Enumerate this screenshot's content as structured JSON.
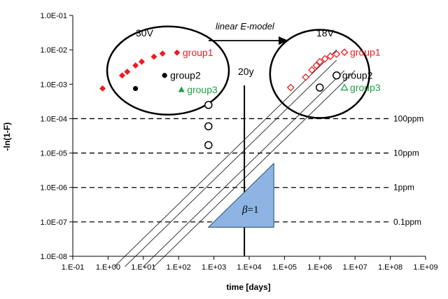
{
  "chart_data": {
    "type": "scatter",
    "xlabel": "time [days]",
    "ylabel": "-ln(1-F)",
    "x_scale": "log",
    "y_scale": "log",
    "xlim": [
      0.1,
      1000000000
    ],
    "ylim": [
      1e-08,
      0.1
    ],
    "x_tick_labels": [
      "1.E-01",
      "1.E+00",
      "1.E+01",
      "1.E+02",
      "1.E+03",
      "1.E+04",
      "1.E+05",
      "1.E+06",
      "1.E+07",
      "1.E+08",
      "1.E+09"
    ],
    "y_tick_labels": [
      "1.0E-08",
      "1.0E-07",
      "1.0E-06",
      "1.0E-05",
      "1.0E-04",
      "1.0E-03",
      "1.0E-02",
      "1.0E-01"
    ],
    "grid": false,
    "reference_lines": [
      {
        "label": "100ppm",
        "y": 0.0001
      },
      {
        "label": "10ppm",
        "y": 1e-05
      },
      {
        "label": "1ppm",
        "y": 1e-06
      },
      {
        "label": "0.1ppm",
        "y": 1e-07
      }
    ],
    "vertical_line": {
      "label": "20y",
      "x": 7300
    },
    "annotations": {
      "left_group": "30V",
      "right_group": "18V",
      "arrow_label": "linear E-model",
      "slope": "=1",
      "slope_symbol": "β"
    },
    "series": [
      {
        "name": "group1",
        "voltage": "30V",
        "marker": "diamond-filled",
        "color": "#ee1c24",
        "x": [
          0.7,
          2.5,
          3.5,
          6,
          9,
          20,
          35,
          90
        ],
        "y": [
          0.00075,
          0.0018,
          0.0023,
          0.0035,
          0.0045,
          0.0063,
          0.0078,
          0.0083
        ]
      },
      {
        "name": "group2",
        "voltage": "30V",
        "marker": "circle-filled",
        "color": "#000000",
        "x": [
          6,
          40
        ],
        "y": [
          0.00075,
          0.0018
        ]
      },
      {
        "name": "group3",
        "voltage": "30V",
        "marker": "triangle-filled",
        "color": "#22a14a",
        "x": [
          120
        ],
        "y": [
          0.0007
        ]
      },
      {
        "name": "",
        "voltage": "",
        "marker": "circle-open",
        "color": "#000000",
        "x": [
          700,
          700,
          700
        ],
        "y": [
          0.00025,
          6e-05,
          1.7e-05
        ]
      },
      {
        "name": "group1",
        "voltage": "18V",
        "marker": "diamond-open",
        "color": "#ee1c24",
        "x": [
          150000,
          400000,
          600000,
          800000,
          1000000,
          1400000,
          2000000,
          3000000,
          5000000
        ],
        "y": [
          0.0008,
          0.0016,
          0.0026,
          0.0035,
          0.0045,
          0.0055,
          0.0065,
          0.0075,
          0.0085
        ]
      },
      {
        "name": "group2",
        "voltage": "18V",
        "marker": "circle-open",
        "color": "#000000",
        "x": [
          1000000,
          3000000
        ],
        "y": [
          0.0008,
          0.0018
        ]
      },
      {
        "name": "group3",
        "voltage": "18V",
        "marker": "triangle-open",
        "color": "#22a14a",
        "x": [
          5000000
        ],
        "y": [
          0.0008
        ]
      }
    ],
    "fit_lines": [
      {
        "x": [
          1.5,
          3000000
        ],
        "y": [
          5e-09,
          0.01
        ]
      },
      {
        "x": [
          3,
          3000000
        ],
        "y": [
          5e-09,
          0.005
        ]
      },
      {
        "x": [
          10,
          5000000
        ],
        "y": [
          5e-09,
          0.0025
        ]
      },
      {
        "x": [
          20,
          10000000
        ],
        "y": [
          5e-09,
          0.0025
        ]
      }
    ],
    "slope_triangle": {
      "x": [
        700,
        50000,
        50000
      ],
      "y": [
        7e-08,
        7e-08,
        5e-06
      ]
    },
    "ellipses": [
      {
        "cx": 50,
        "cy": 0.0025
      },
      {
        "cx": 1000000,
        "cy": 0.002
      }
    ]
  }
}
